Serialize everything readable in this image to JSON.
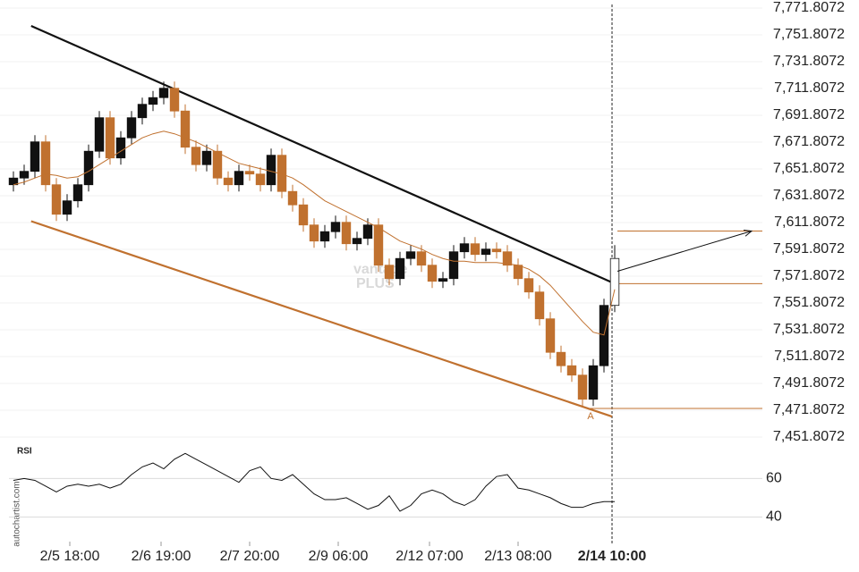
{
  "source": "autochartist.com",
  "watermark": [
    "vantage",
    "PLUS"
  ],
  "chart_data": [
    {
      "type": "candlestick",
      "x": [
        0,
        2,
        4,
        6,
        8,
        10,
        12,
        14,
        16,
        18,
        20,
        22,
        24,
        26,
        28,
        30,
        32,
        34,
        36,
        38,
        40,
        42,
        44,
        46,
        48,
        50,
        52,
        54,
        56,
        58,
        60,
        62,
        64,
        66,
        68,
        70,
        72,
        74,
        76,
        78,
        80,
        82,
        84,
        86,
        88,
        90,
        92,
        94,
        96,
        98,
        100,
        102,
        104,
        106,
        108,
        110,
        112
      ],
      "open": [
        7640,
        7645,
        7650,
        7672,
        7640,
        7618,
        7628,
        7640,
        7665,
        7690,
        7660,
        7675,
        7690,
        7700,
        7705,
        7712,
        7695,
        7668,
        7655,
        7665,
        7645,
        7640,
        7650,
        7648,
        7640,
        7662,
        7635,
        7625,
        7610,
        7598,
        7605,
        7612,
        7596,
        7600,
        7610,
        7580,
        7570,
        7585,
        7590,
        7580,
        7568,
        7570,
        7590,
        7596,
        7588,
        7592,
        7590,
        7580,
        7570,
        7560,
        7540,
        7515,
        7505,
        7498,
        7480,
        7505,
        7550
      ],
      "high": [
        7650,
        7655,
        7677,
        7677,
        7645,
        7633,
        7645,
        7670,
        7695,
        7695,
        7680,
        7695,
        7705,
        7710,
        7717,
        7717,
        7700,
        7673,
        7670,
        7670,
        7650,
        7655,
        7655,
        7653,
        7667,
        7667,
        7640,
        7630,
        7615,
        7610,
        7617,
        7617,
        7605,
        7615,
        7615,
        7585,
        7590,
        7595,
        7595,
        7585,
        7575,
        7595,
        7601,
        7601,
        7597,
        7597,
        7595,
        7585,
        7575,
        7565,
        7545,
        7520,
        7510,
        7503,
        7510,
        7555,
        7595
      ],
      "low": [
        7635,
        7640,
        7645,
        7635,
        7613,
        7613,
        7623,
        7635,
        7660,
        7655,
        7655,
        7670,
        7685,
        7695,
        7700,
        7690,
        7663,
        7650,
        7650,
        7640,
        7635,
        7635,
        7643,
        7635,
        7635,
        7630,
        7620,
        7605,
        7593,
        7593,
        7600,
        7591,
        7591,
        7595,
        7575,
        7565,
        7565,
        7580,
        7575,
        7563,
        7563,
        7565,
        7585,
        7583,
        7583,
        7585,
        7575,
        7565,
        7555,
        7535,
        7510,
        7500,
        7493,
        7475,
        7475,
        7500,
        7545
      ],
      "close": [
        7645,
        7650,
        7672,
        7640,
        7618,
        7628,
        7640,
        7665,
        7690,
        7660,
        7675,
        7690,
        7700,
        7705,
        7712,
        7695,
        7668,
        7655,
        7665,
        7645,
        7640,
        7650,
        7648,
        7640,
        7662,
        7635,
        7625,
        7610,
        7598,
        7605,
        7612,
        7596,
        7600,
        7610,
        7580,
        7570,
        7585,
        7590,
        7580,
        7568,
        7570,
        7590,
        7596,
        7588,
        7592,
        7590,
        7580,
        7570,
        7560,
        7540,
        7515,
        7505,
        7498,
        7480,
        7505,
        7550,
        7585
      ],
      "up_color": "#111111",
      "down_color": "#c0712f",
      "ma": {
        "color": "#c0712f",
        "values": [
          7640,
          7642,
          7645,
          7648,
          7647,
          7645,
          7646,
          7650,
          7655,
          7660,
          7665,
          7670,
          7675,
          7678,
          7680,
          7678,
          7675,
          7672,
          7668,
          7664,
          7660,
          7656,
          7654,
          7652,
          7650,
          7648,
          7645,
          7640,
          7634,
          7628,
          7624,
          7620,
          7616,
          7612,
          7608,
          7603,
          7598,
          7595,
          7592,
          7588,
          7585,
          7583,
          7583,
          7582,
          7582,
          7582,
          7581,
          7580,
          7577,
          7572,
          7565,
          7556,
          7547,
          7538,
          7530,
          7528,
          7562
        ]
      },
      "xlim": [
        -2.5,
        139.5
      ],
      "ylim": [
        7451.8072,
        7771.8072
      ],
      "yticks": [
        {
          "value": 7771.8072,
          "label": "7,771.8072"
        },
        {
          "value": 7751.8072,
          "label": "7,751.8072"
        },
        {
          "value": 7731.8072,
          "label": "7,731.8072"
        },
        {
          "value": 7711.8072,
          "label": "7,711.8072"
        },
        {
          "value": 7691.8072,
          "label": "7,691.8072"
        },
        {
          "value": 7671.8072,
          "label": "7,671.8072"
        },
        {
          "value": 7651.8072,
          "label": "7,651.8072"
        },
        {
          "value": 7631.8072,
          "label": "7,631.8072"
        },
        {
          "value": 7611.8072,
          "label": "7,611.8072"
        },
        {
          "value": 7591.8072,
          "label": "7,591.8072"
        },
        {
          "value": 7571.8072,
          "label": "7,571.8072"
        },
        {
          "value": 7551.8072,
          "label": "7,551.8072"
        },
        {
          "value": 7531.8072,
          "label": "7,531.8072"
        },
        {
          "value": 7511.8072,
          "label": "7,511.8072"
        },
        {
          "value": 7491.8072,
          "label": "7,491.8072"
        },
        {
          "value": 7471.8072,
          "label": "7,471.8072"
        },
        {
          "value": 7451.8072,
          "label": "7,451.8072"
        }
      ],
      "xticks": [
        {
          "value": 10.5,
          "label": "2/5 18:00"
        },
        {
          "value": 27.5,
          "label": "2/6 19:00"
        },
        {
          "value": 44,
          "label": "2/7 20:00"
        },
        {
          "value": 60.5,
          "label": "2/9 06:00"
        },
        {
          "value": 77.5,
          "label": "2/12 07:00"
        },
        {
          "value": 94,
          "label": "2/13 08:00"
        },
        {
          "value": 111.5,
          "label": "2/14 10:00"
        }
      ],
      "trendlines": [
        {
          "from": [
            3.3,
            7758.5
          ],
          "to": [
            111.3,
            7567.5
          ],
          "color": "#111111"
        },
        {
          "from": [
            3.3,
            7612.8
          ],
          "to": [
            111.5,
            7467.1
          ],
          "color": "#c0712f"
        }
      ],
      "levels": [
        {
          "value": 7605.5,
          "x": [
            112.5,
            139.5
          ],
          "color": "#c0712f"
        },
        {
          "value": 7566.2,
          "x": [
            112.5,
            139.5
          ],
          "color": "#c0712f"
        },
        {
          "value": 7473.1,
          "x": [
            107,
            139.5
          ],
          "color": "#c0712f"
        }
      ],
      "arrow": {
        "from": [
          112.5,
          7575.5
        ],
        "to": [
          137.5,
          7605.5
        ],
        "color": "#111111"
      },
      "annotation": {
        "text": "A",
        "x": 107.5,
        "y": 7467
      }
    },
    {
      "type": "line",
      "title": "RSI",
      "x": [
        0,
        2,
        4,
        6,
        8,
        10,
        12,
        14,
        16,
        18,
        20,
        22,
        24,
        26,
        28,
        30,
        32,
        34,
        36,
        38,
        40,
        42,
        44,
        46,
        48,
        50,
        52,
        54,
        56,
        58,
        60,
        62,
        64,
        66,
        68,
        70,
        72,
        74,
        76,
        78,
        80,
        82,
        84,
        86,
        88,
        90,
        92,
        94,
        96,
        98,
        100,
        102,
        104,
        106,
        108,
        110,
        112
      ],
      "values": [
        59,
        60,
        59,
        56,
        53,
        56,
        57,
        56,
        57,
        55,
        57,
        62,
        66,
        68,
        65,
        70,
        73,
        70,
        67,
        64,
        61,
        58,
        64,
        66,
        60,
        59,
        62,
        57,
        52,
        49,
        49,
        50,
        47,
        44,
        46,
        51,
        43,
        46,
        52,
        54,
        52,
        48,
        46,
        49,
        56,
        61,
        62,
        55,
        54,
        52,
        50,
        47,
        45,
        45,
        47,
        48,
        48
      ],
      "color": "#111111",
      "xlim": [
        -2.5,
        139.5
      ],
      "ylim": [
        30,
        75
      ],
      "yticks": [
        40,
        60
      ]
    }
  ]
}
